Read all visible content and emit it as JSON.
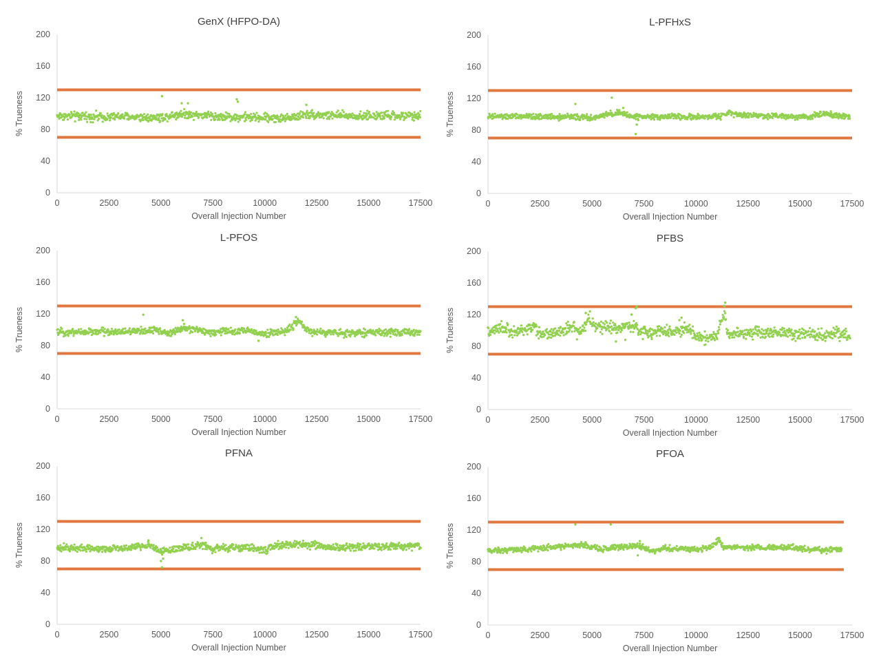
{
  "chart_data": [
    {
      "type": "scatter",
      "title": "GenX (HFPO-DA)",
      "xlabel": "Overall Injection Number",
      "ylabel": "% Trueness",
      "xlim": [
        0,
        17500
      ],
      "ylim": [
        0,
        200
      ],
      "xticks": [
        "0",
        "2500",
        "5000",
        "7500",
        "10000",
        "12500",
        "15000",
        "17500"
      ],
      "yticks": [
        "0",
        "40",
        "80",
        "120",
        "160",
        "200"
      ],
      "grid": false,
      "limit_lines": [
        {
          "y": 130,
          "x": [
            0,
            17500
          ]
        },
        {
          "y": 70,
          "x": [
            0,
            17500
          ]
        }
      ],
      "series": [
        {
          "baseline": [
            [
              0,
              97
            ],
            [
              3000,
              96
            ],
            [
              5000,
              95
            ],
            [
              6000,
              100
            ],
            [
              8000,
              96
            ],
            [
              10000,
              95
            ],
            [
              11000,
              94
            ],
            [
              12000,
              99
            ],
            [
              14000,
              97
            ],
            [
              17500,
              97
            ]
          ],
          "noise": 6,
          "step": 20,
          "x_end": 17500,
          "outliers": [
            [
              5050,
              122
            ],
            [
              8650,
              118
            ],
            [
              8700,
              115
            ],
            [
              6000,
              113
            ],
            [
              6300,
              113
            ],
            [
              12000,
              111
            ],
            [
              1050,
              92
            ]
          ]
        }
      ]
    },
    {
      "type": "scatter",
      "title": "L-PFHxS",
      "xlabel": "Overall Injection Number",
      "ylabel": "% Trueness",
      "xlim": [
        0,
        17500
      ],
      "ylim": [
        0,
        200
      ],
      "xticks": [
        "0",
        "2500",
        "5000",
        "7500",
        "10000",
        "12500",
        "15000",
        "17500"
      ],
      "yticks": [
        "0",
        "40",
        "80",
        "120",
        "160",
        "200"
      ],
      "grid": false,
      "limit_lines": [
        {
          "y": 130,
          "x": [
            0,
            17500
          ]
        },
        {
          "y": 70,
          "x": [
            0,
            17500
          ]
        }
      ],
      "series": [
        {
          "baseline": [
            [
              0,
              97
            ],
            [
              4000,
              97
            ],
            [
              5000,
              95
            ],
            [
              6200,
              102
            ],
            [
              7000,
              97
            ],
            [
              9000,
              97
            ],
            [
              10000,
              96
            ],
            [
              11300,
              98
            ],
            [
              11600,
              104
            ],
            [
              12000,
              99
            ],
            [
              15500,
              97
            ],
            [
              16000,
              101
            ],
            [
              17400,
              97
            ]
          ],
          "noise": 4,
          "step": 20,
          "x_end": 17400,
          "outliers": [
            [
              4200,
              113
            ],
            [
              5950,
              121
            ],
            [
              7100,
              75
            ],
            [
              7150,
              87
            ],
            [
              6500,
              108
            ]
          ]
        }
      ]
    },
    {
      "type": "scatter",
      "title": "L-PFOS",
      "xlabel": "Overall Injection Number",
      "ylabel": "% Trueness",
      "xlim": [
        0,
        17500
      ],
      "ylim": [
        0,
        200
      ],
      "xticks": [
        "0",
        "2500",
        "5000",
        "7500",
        "10000",
        "12500",
        "15000",
        "17500"
      ],
      "yticks": [
        "0",
        "40",
        "80",
        "120",
        "160",
        "200"
      ],
      "grid": false,
      "limit_lines": [
        {
          "y": 130,
          "x": [
            0,
            17500
          ]
        },
        {
          "y": 70,
          "x": [
            0,
            17500
          ]
        }
      ],
      "series": [
        {
          "baseline": [
            [
              0,
              97
            ],
            [
              4000,
              98
            ],
            [
              4800,
              100
            ],
            [
              5500,
              95
            ],
            [
              6000,
              102
            ],
            [
              7500,
              97
            ],
            [
              9000,
              99
            ],
            [
              10000,
              95
            ],
            [
              11000,
              98
            ],
            [
              11600,
              110
            ],
            [
              12200,
              97
            ],
            [
              14000,
              96
            ],
            [
              17500,
              97
            ]
          ],
          "noise": 5,
          "step": 20,
          "x_end": 17500,
          "outliers": [
            [
              4150,
              119
            ],
            [
              11500,
              116
            ],
            [
              9700,
              86
            ],
            [
              6050,
              112
            ]
          ]
        }
      ]
    },
    {
      "type": "scatter",
      "title": "PFBS",
      "xlabel": "Overall Injection Number",
      "ylabel": "% Trueness",
      "xlim": [
        0,
        17500
      ],
      "ylim": [
        0,
        200
      ],
      "xticks": [
        "0",
        "2500",
        "5000",
        "7500",
        "10000",
        "12500",
        "15000",
        "17500"
      ],
      "yticks": [
        "0",
        "40",
        "80",
        "120",
        "160",
        "200"
      ],
      "grid": false,
      "limit_lines": [
        {
          "y": 130,
          "x": [
            0,
            17500
          ]
        },
        {
          "y": 70,
          "x": [
            0,
            17500
          ]
        }
      ],
      "series": [
        {
          "baseline": [
            [
              0,
              97
            ],
            [
              300,
              99
            ],
            [
              700,
              103
            ],
            [
              1200,
              98
            ],
            [
              1800,
              100
            ],
            [
              2200,
              106
            ],
            [
              2500,
              96
            ],
            [
              3200,
              96
            ],
            [
              3800,
              102
            ],
            [
              4100,
              106
            ],
            [
              4300,
              96
            ],
            [
              4600,
              100
            ],
            [
              4800,
              115
            ],
            [
              5200,
              105
            ],
            [
              6000,
              103
            ],
            [
              7000,
              106
            ],
            [
              7300,
              98
            ],
            [
              8000,
              97
            ],
            [
              9200,
              99
            ],
            [
              9600,
              104
            ],
            [
              9900,
              94
            ],
            [
              10500,
              90
            ],
            [
              11000,
              93
            ],
            [
              11200,
              110
            ],
            [
              11400,
              125
            ],
            [
              11500,
              94
            ],
            [
              12000,
              97
            ],
            [
              15000,
              96
            ],
            [
              16000,
              94
            ],
            [
              17000,
              96
            ],
            [
              17400,
              93
            ]
          ],
          "noise": 8,
          "step": 20,
          "x_end": 17400,
          "outliers": [
            [
              4700,
              122
            ],
            [
              4900,
              124
            ],
            [
              7100,
              128
            ],
            [
              7150,
              130
            ],
            [
              11400,
              135
            ],
            [
              11350,
              131
            ],
            [
              6900,
              120
            ],
            [
              6600,
              88
            ],
            [
              6150,
              86
            ],
            [
              9300,
              116
            ],
            [
              9200,
              113
            ]
          ]
        }
      ]
    },
    {
      "type": "scatter",
      "title": "PFNA",
      "xlabel": "Overall Injection Number",
      "ylabel": "% Trueness",
      "xlim": [
        0,
        17500
      ],
      "ylim": [
        0,
        200
      ],
      "xticks": [
        "0",
        "2500",
        "5000",
        "7500",
        "10000",
        "12500",
        "15000",
        "17500"
      ],
      "yticks": [
        "0",
        "40",
        "80",
        "120",
        "160",
        "200"
      ],
      "grid": false,
      "limit_lines": [
        {
          "y": 130,
          "x": [
            0,
            17500
          ]
        },
        {
          "y": 70,
          "x": [
            0,
            17500
          ]
        }
      ],
      "series": [
        {
          "baseline": [
            [
              0,
              96
            ],
            [
              2500,
              96
            ],
            [
              4000,
              98
            ],
            [
              4500,
              100
            ],
            [
              5000,
              92
            ],
            [
              5500,
              94
            ],
            [
              6000,
              97
            ],
            [
              7000,
              100
            ],
            [
              7500,
              94
            ],
            [
              8000,
              97
            ],
            [
              9500,
              97
            ],
            [
              10000,
              92
            ],
            [
              10500,
              100
            ],
            [
              12000,
              101
            ],
            [
              13000,
              97
            ],
            [
              17500,
              99
            ]
          ],
          "noise": 5,
          "step": 20,
          "x_end": 17500,
          "outliers": [
            [
              5050,
              72
            ],
            [
              5000,
              80
            ],
            [
              6950,
              109
            ],
            [
              5100,
              83
            ],
            [
              4400,
              106
            ]
          ]
        }
      ]
    },
    {
      "type": "scatter",
      "title": "PFOA",
      "xlabel": "Overall Injection Number",
      "ylabel": "% Trueness",
      "xlim": [
        0,
        17500
      ],
      "ylim": [
        0,
        200
      ],
      "xticks": [
        "0",
        "2500",
        "5000",
        "7500",
        "10000",
        "12500",
        "15000",
        "17500"
      ],
      "yticks": [
        "0",
        "40",
        "80",
        "120",
        "160",
        "200"
      ],
      "grid": false,
      "limit_lines": [
        {
          "y": 130,
          "x": [
            0,
            17100
          ]
        },
        {
          "y": 70,
          "x": [
            0,
            17100
          ]
        }
      ],
      "series": [
        {
          "baseline": [
            [
              0,
              94
            ],
            [
              2000,
              96
            ],
            [
              3500,
              99
            ],
            [
              4500,
              101
            ],
            [
              5500,
              95
            ],
            [
              6000,
              99
            ],
            [
              6800,
              99
            ],
            [
              7300,
              100
            ],
            [
              7800,
              93
            ],
            [
              8500,
              97
            ],
            [
              10000,
              96
            ],
            [
              10800,
              99
            ],
            [
              11100,
              110
            ],
            [
              11300,
              98
            ],
            [
              13000,
              98
            ],
            [
              14500,
              98
            ],
            [
              15500,
              95
            ],
            [
              17000,
              95
            ]
          ],
          "noise": 4,
          "step": 20,
          "x_end": 17000,
          "outliers": [
            [
              4200,
              127
            ],
            [
              5900,
              127
            ],
            [
              7300,
              106
            ],
            [
              7200,
              88
            ]
          ]
        }
      ]
    }
  ],
  "colors": {
    "points": "#92d050",
    "limits": "#e0773e",
    "axis": "#d9d9d9",
    "text": "#595959"
  }
}
